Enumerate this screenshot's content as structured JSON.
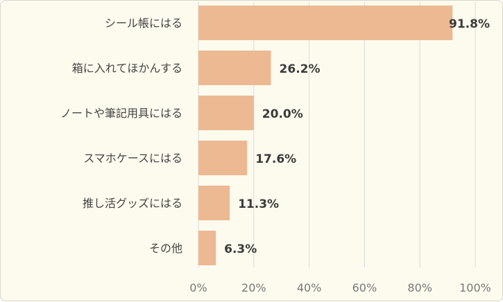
{
  "chart_data": {
    "type": "bar",
    "orientation": "horizontal",
    "categories": [
      "シール帳にはる",
      "箱に入れてほかんする",
      "ノートや筆記用具にはる",
      "スマホケースにはる",
      "推し活グッズにはる",
      "その他"
    ],
    "values": [
      91.8,
      26.2,
      20.0,
      17.6,
      11.3,
      6.3
    ],
    "value_labels": [
      "91.8%",
      "26.2%",
      "20.0%",
      "17.6%",
      "11.3%",
      "6.3%"
    ],
    "xlim": [
      0,
      100
    ],
    "x_ticks": [
      0,
      20,
      40,
      60,
      80,
      100
    ],
    "x_tick_labels": [
      "0%",
      "20%",
      "40%",
      "60%",
      "80%",
      "100%"
    ],
    "grid": true,
    "bar_color": "#ecb993",
    "gridline_color": "#d9d9d9",
    "background_color": "#fdfbee",
    "title": "",
    "xlabel": "",
    "ylabel": ""
  }
}
